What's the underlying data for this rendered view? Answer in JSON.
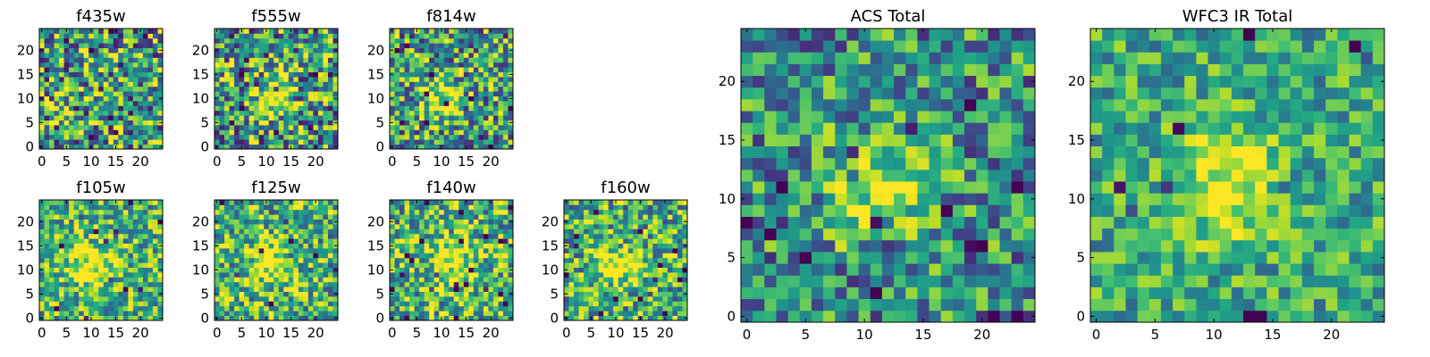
{
  "figure": {
    "colormap": "viridis",
    "pixel_grid": [
      25,
      25
    ]
  },
  "chart_data": [
    {
      "type": "heatmap",
      "title": "f435w",
      "grid": [
        25,
        25
      ],
      "xticks": [
        0,
        5,
        10,
        15,
        20
      ],
      "yticks": [
        0,
        5,
        10,
        15,
        20
      ],
      "source_peak": null,
      "noise": 1.0,
      "bg": 0.55,
      "seed": 11
    },
    {
      "type": "heatmap",
      "title": "f555w",
      "grid": [
        25,
        25
      ],
      "xticks": [
        0,
        5,
        10,
        15,
        20
      ],
      "yticks": [
        0,
        5,
        10,
        15,
        20
      ],
      "source_peak": [
        11,
        10
      ],
      "noise": 1.0,
      "bg": 0.55,
      "seed": 23
    },
    {
      "type": "heatmap",
      "title": "f814w",
      "grid": [
        25,
        25
      ],
      "xticks": [
        0,
        5,
        10,
        15,
        20
      ],
      "yticks": [
        0,
        5,
        10,
        15,
        20
      ],
      "source_peak": [
        10,
        10
      ],
      "noise": 0.9,
      "bg": 0.55,
      "seed": 37
    },
    {
      "type": "heatmap",
      "title": "f105w",
      "grid": [
        25,
        25
      ],
      "xticks": [
        0,
        5,
        10,
        15,
        20
      ],
      "yticks": [
        0,
        5,
        10,
        15,
        20
      ],
      "source_peak": [
        10,
        11
      ],
      "noise": 0.7,
      "bg": 0.65,
      "seed": 41
    },
    {
      "type": "heatmap",
      "title": "f125w",
      "grid": [
        25,
        25
      ],
      "xticks": [
        0,
        5,
        10,
        15,
        20
      ],
      "yticks": [
        0,
        5,
        10,
        15,
        20
      ],
      "source_peak": [
        11,
        11
      ],
      "noise": 0.8,
      "bg": 0.65,
      "seed": 53
    },
    {
      "type": "heatmap",
      "title": "f140w",
      "grid": [
        25,
        25
      ],
      "xticks": [
        0,
        5,
        10,
        15,
        20
      ],
      "yticks": [
        0,
        5,
        10,
        15,
        20
      ],
      "source_peak": [
        12,
        12
      ],
      "noise": 0.8,
      "bg": 0.65,
      "seed": 67
    },
    {
      "type": "heatmap",
      "title": "f160w",
      "grid": [
        25,
        25
      ],
      "xticks": [
        0,
        5,
        10,
        15,
        20
      ],
      "yticks": [
        0,
        5,
        10,
        15,
        20
      ],
      "source_peak": [
        10,
        11
      ],
      "noise": 0.8,
      "bg": 0.62,
      "seed": 71
    },
    {
      "type": "heatmap",
      "title": "ACS Total",
      "grid": [
        25,
        25
      ],
      "xticks": [
        0,
        5,
        10,
        15,
        20
      ],
      "yticks": [
        0,
        5,
        10,
        15,
        20
      ],
      "source_peak": [
        11,
        11
      ],
      "noise": 0.75,
      "bg": 0.5,
      "seed": 83
    },
    {
      "type": "heatmap",
      "title": "WFC3 IR Total",
      "grid": [
        25,
        25
      ],
      "xticks": [
        0,
        5,
        10,
        15,
        20
      ],
      "yticks": [
        0,
        5,
        10,
        15,
        20
      ],
      "source_peak": [
        11,
        11
      ],
      "noise": 0.55,
      "bg": 0.6,
      "seed": 97
    }
  ]
}
